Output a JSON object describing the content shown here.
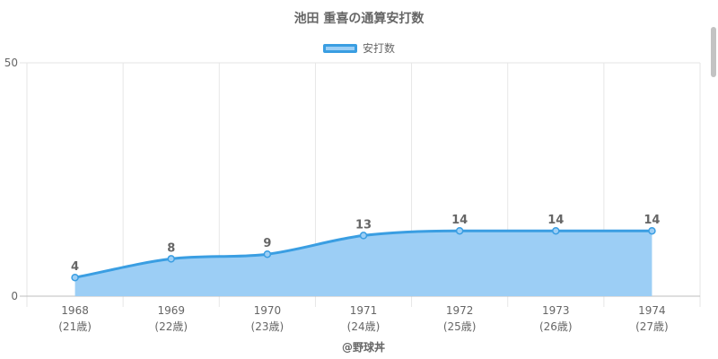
{
  "chart_data": {
    "type": "area",
    "title": "池田 重喜の通算安打数",
    "categories": [
      "1968",
      "1969",
      "1970",
      "1971",
      "1972",
      "1973",
      "1974"
    ],
    "category_sublabels": [
      "(21歳)",
      "(22歳)",
      "(23歳)",
      "(24歳)",
      "(25歳)",
      "(26歳)",
      "(27歳)"
    ],
    "series": [
      {
        "name": "安打数",
        "values": [
          4,
          8,
          9,
          13,
          14,
          14,
          14
        ]
      }
    ],
    "ylim": [
      0,
      50
    ],
    "yticks": [
      "0",
      "50"
    ],
    "grid": true,
    "legend_position": "top",
    "line_color": "#3a9ee2",
    "fill_color": "#9ccef5",
    "xlabel": "",
    "ylabel": ""
  },
  "credit": "@野球丼"
}
